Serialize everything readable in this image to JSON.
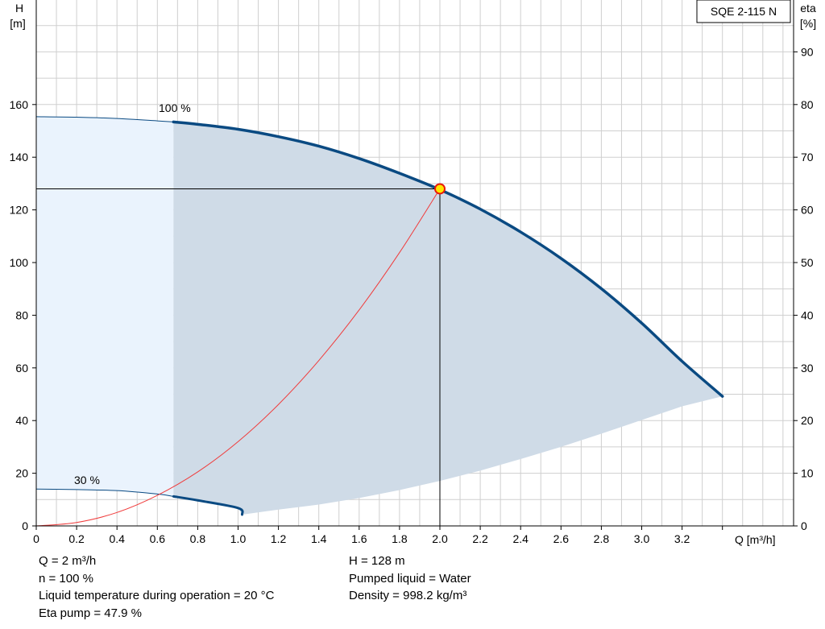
{
  "chart_data": {
    "type": "line",
    "title_box": "SQE 2-115 N",
    "y_left_label": [
      "H",
      "[m]"
    ],
    "y_right_label": [
      "eta",
      "[%]"
    ],
    "x_label": "Q [m³/h]",
    "x_ticks": [
      "0",
      "0.2",
      "0.4",
      "0.6",
      "0.8",
      "1.0",
      "1.2",
      "1.4",
      "1.6",
      "1.8",
      "2.0",
      "2.2",
      "2.4",
      "2.6",
      "2.8",
      "3.0",
      "3.2"
    ],
    "y_left_ticks": [
      "0",
      "20",
      "40",
      "60",
      "80",
      "100",
      "120",
      "140",
      "160"
    ],
    "y_right_ticks": [
      "0",
      "10",
      "20",
      "30",
      "40",
      "50",
      "60",
      "70",
      "80",
      "90"
    ],
    "xlim": [
      0,
      3.7
    ],
    "ylim_left": [
      0,
      190
    ],
    "ylim_right": [
      0,
      95
    ],
    "grid": true,
    "curve_labels": [
      "100 %",
      "30 %"
    ],
    "pump_curve_100": [
      [
        0,
        155.4
      ],
      [
        0.2,
        155.2
      ],
      [
        0.4,
        154.7
      ],
      [
        0.6,
        153.8
      ],
      [
        0.68,
        153.4
      ],
      [
        0.8,
        152.5
      ],
      [
        1.0,
        150.6
      ],
      [
        1.2,
        147.8
      ],
      [
        1.4,
        144.2
      ],
      [
        1.6,
        139.5
      ],
      [
        1.8,
        133.9
      ],
      [
        2.0,
        127.7
      ],
      [
        2.2,
        120.3
      ],
      [
        2.4,
        111.6
      ],
      [
        2.6,
        101.6
      ],
      [
        2.8,
        90.1
      ],
      [
        3.0,
        77.0
      ],
      [
        3.2,
        62.5
      ],
      [
        3.4,
        49.2
      ]
    ],
    "pump_curve_30": [
      [
        0,
        14.0
      ],
      [
        0.2,
        13.8
      ],
      [
        0.4,
        13.4
      ],
      [
        0.6,
        12.1
      ],
      [
        0.68,
        11.2
      ],
      [
        0.8,
        9.7
      ],
      [
        1.0,
        6.8
      ],
      [
        1.02,
        4.3
      ]
    ],
    "system_curve": [
      [
        0,
        0
      ],
      [
        0.2,
        1.3
      ],
      [
        0.4,
        5.1
      ],
      [
        0.6,
        11.6
      ],
      [
        0.8,
        20.5
      ],
      [
        1.0,
        32.0
      ],
      [
        1.2,
        46.1
      ],
      [
        1.4,
        62.8
      ],
      [
        1.6,
        82.0
      ],
      [
        1.8,
        103.8
      ],
      [
        2.0,
        128.0
      ]
    ],
    "lower_boundary": [
      [
        1.02,
        4.3
      ],
      [
        1.2,
        6.2
      ],
      [
        1.4,
        8.1
      ],
      [
        1.6,
        10.6
      ],
      [
        1.8,
        13.6
      ],
      [
        2.0,
        17.1
      ],
      [
        2.2,
        21.0
      ],
      [
        2.4,
        25.4
      ],
      [
        2.6,
        30.0
      ],
      [
        2.8,
        35.0
      ],
      [
        3.0,
        40.2
      ],
      [
        3.2,
        45.4
      ],
      [
        3.4,
        49.2
      ]
    ],
    "split_q": 0.68,
    "operating_point": {
      "q": 2.0,
      "h": 128
    }
  },
  "info": {
    "left": [
      "Q = 2 m³/h",
      "n = 100 %",
      "Liquid temperature during operation = 20 °C",
      "Eta pump = 47.9 %"
    ],
    "right": [
      "H = 128 m",
      "Pumped liquid = Water",
      "Density = 998.2 kg/m³"
    ]
  },
  "colors": {
    "curve": "#0a4a82",
    "system": "#f03c3c",
    "fill_main": "#cfdbe7",
    "fill_light": "#eaf3fd",
    "grid": "#cfcfcf",
    "point_fill": "#ffe600",
    "point_stroke": "#e8190a"
  }
}
